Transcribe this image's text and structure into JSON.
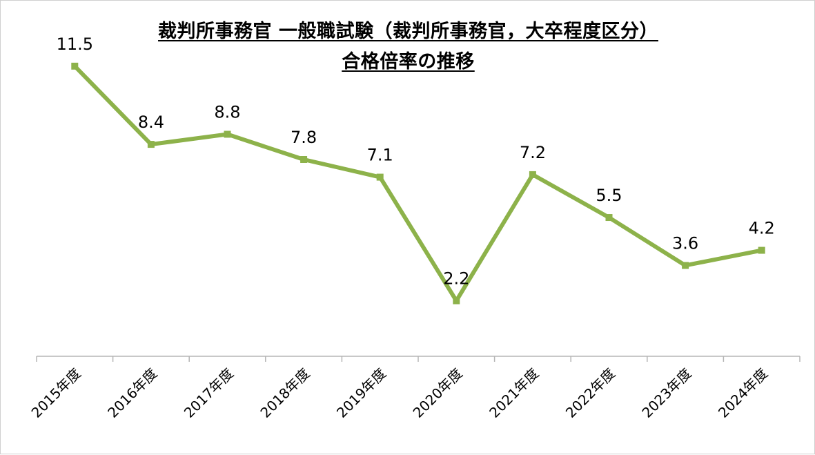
{
  "chart_data": {
    "type": "line",
    "title": "裁判所事務官 一般職試験（裁判所事務官，大卒程度区分）",
    "subtitle": "合格倍率の推移",
    "categories": [
      "2015年度",
      "2016年度",
      "2017年度",
      "2018年度",
      "2019年度",
      "2020年度",
      "2021年度",
      "2022年度",
      "2023年度",
      "2024年度"
    ],
    "series": [
      {
        "name": "合格倍率",
        "values": [
          11.5,
          8.4,
          8.8,
          7.8,
          7.1,
          2.2,
          7.2,
          5.5,
          3.6,
          4.2
        ],
        "labels": [
          "11.5",
          "8.4",
          "8.8",
          "7.8",
          "7.1",
          "2.2",
          "7.2",
          "5.5",
          "3.6",
          "4.2"
        ],
        "color": "#8db24a"
      }
    ],
    "xlabel": "",
    "ylabel": "",
    "ylim": [
      0,
      13
    ],
    "grid": false,
    "legend": "none"
  }
}
